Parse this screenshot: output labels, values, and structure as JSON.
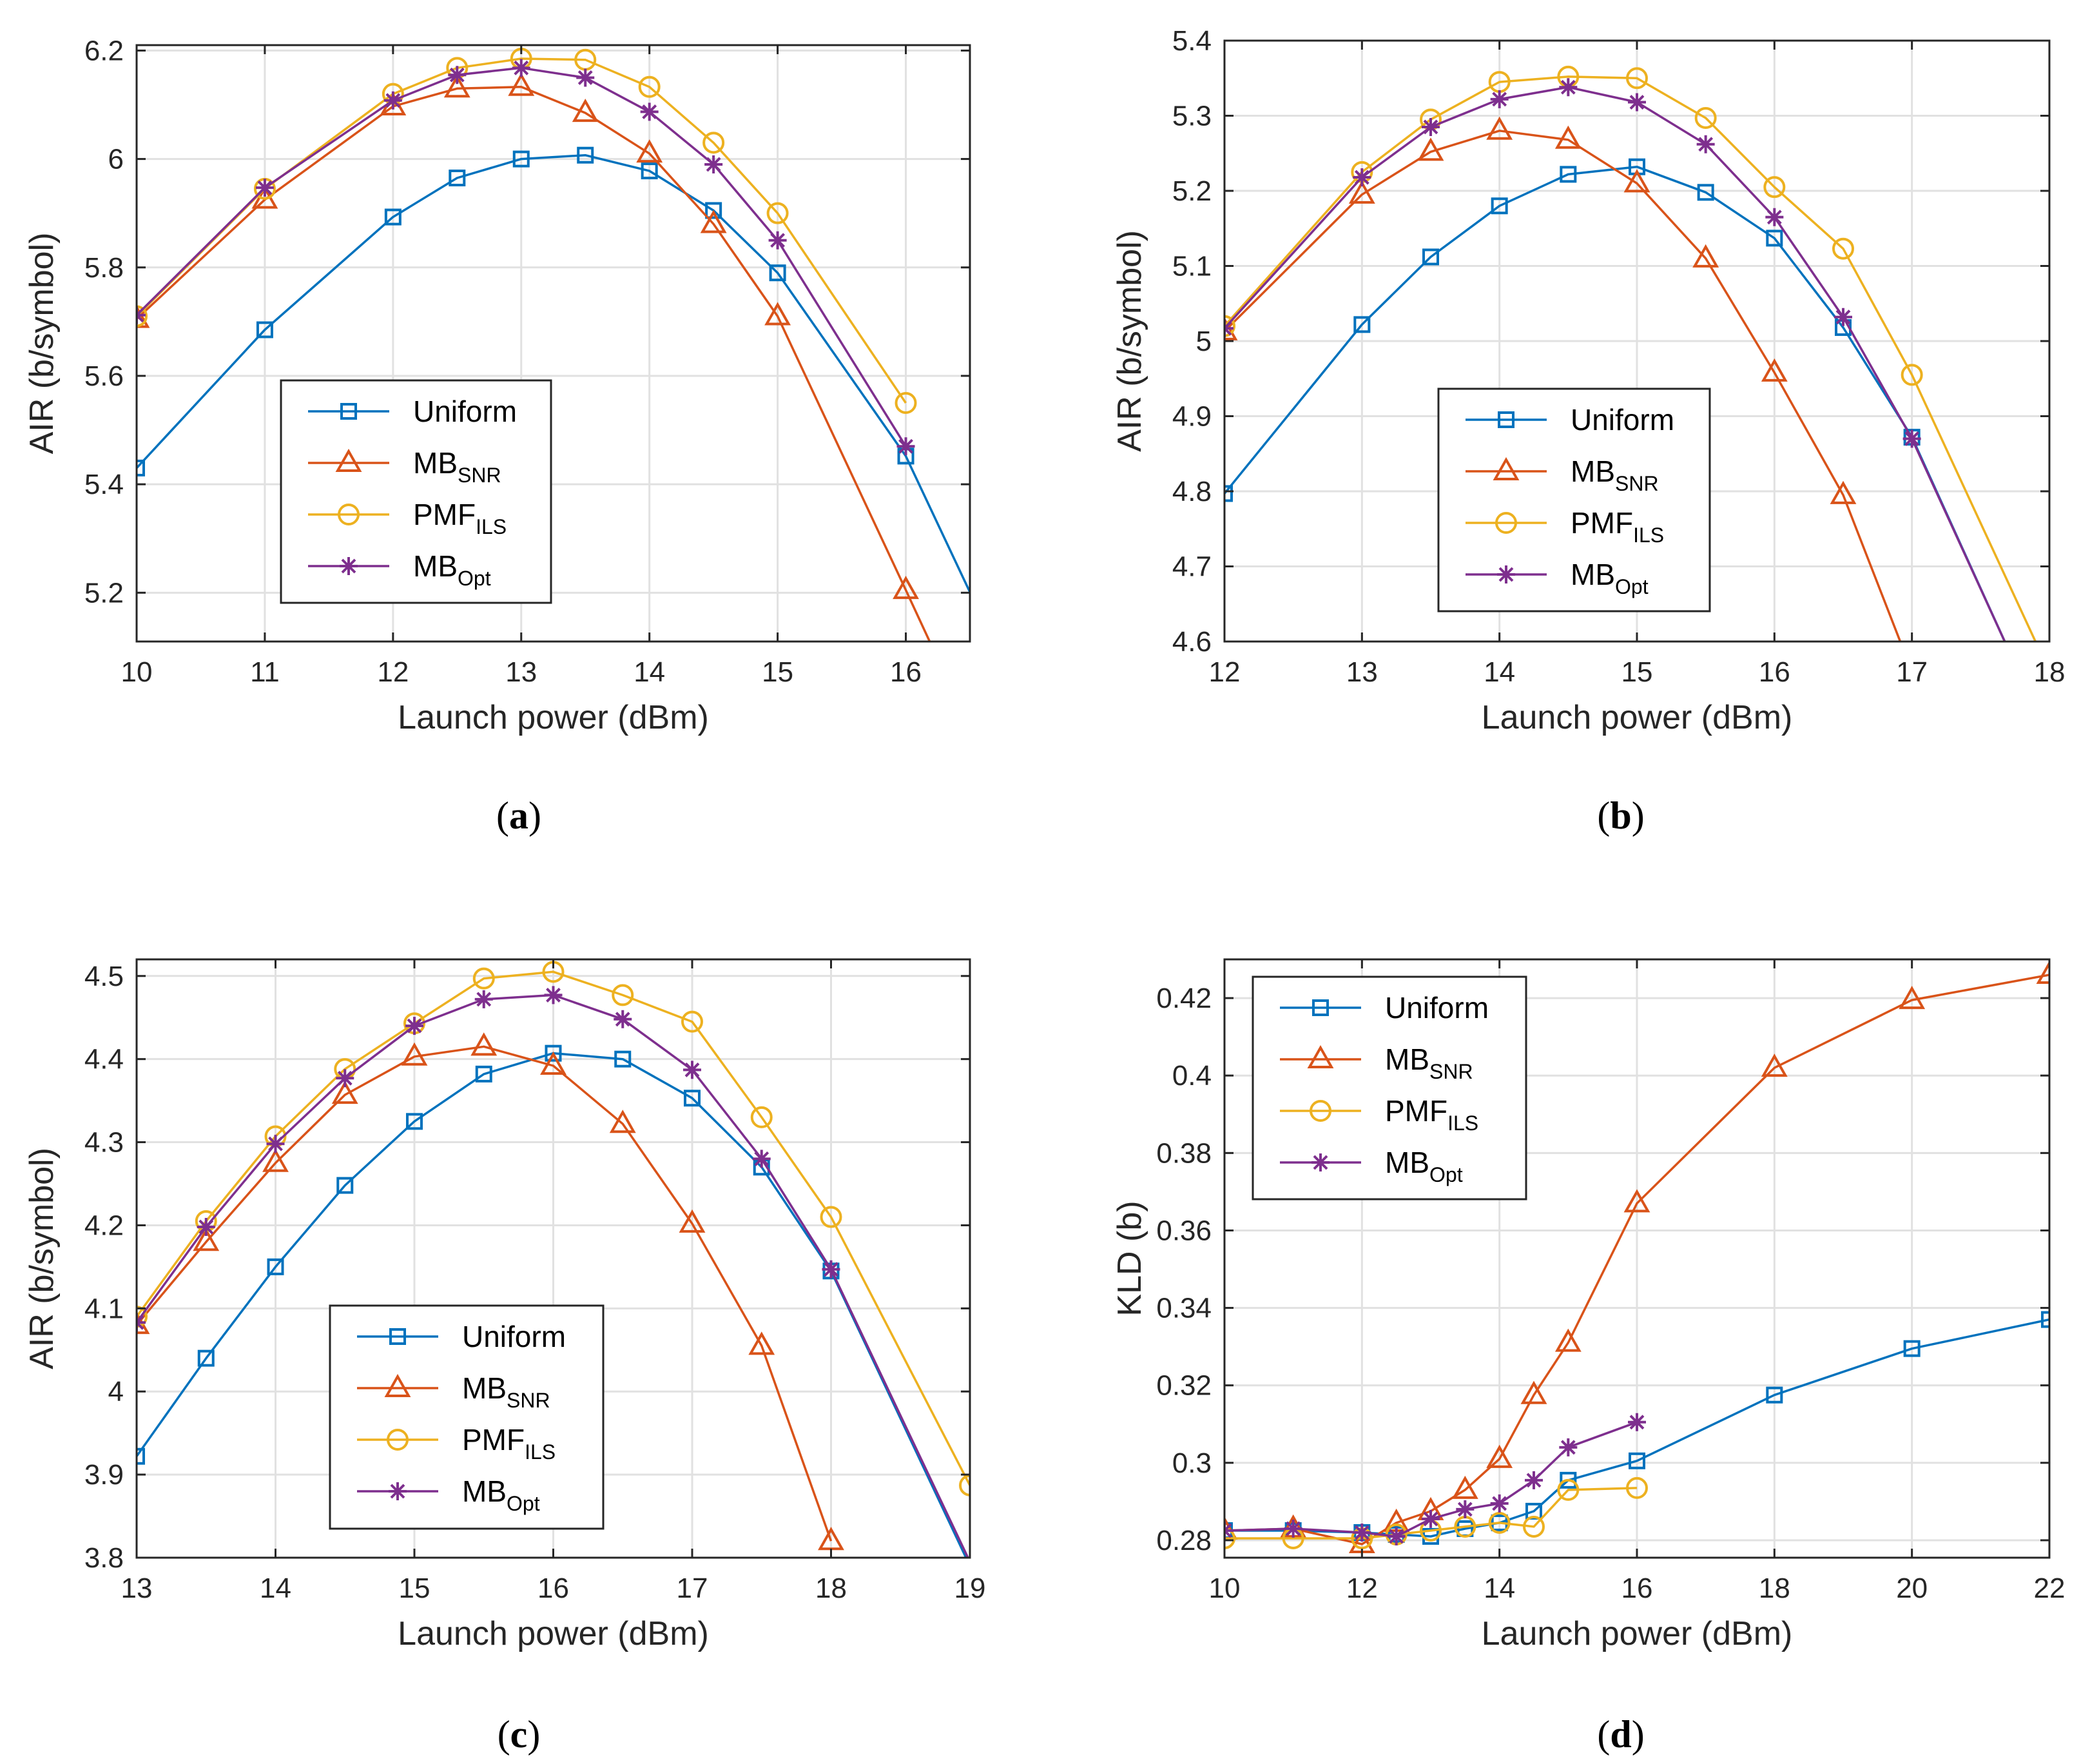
{
  "figure": {
    "colors": {
      "Uniform": "#0072BD",
      "MB_SNR": "#D95319",
      "PMF_ILS": "#EDB120",
      "MB_Opt": "#7E2F8E",
      "grid": "#e1e1e1",
      "axis": "#262626"
    }
  },
  "chart_data": [
    {
      "panel": "a",
      "caption_letter": "a",
      "type": "line",
      "xlabel": "Launch power (dBm)",
      "ylabel": "AIR (b/symbol)",
      "xlim": [
        10,
        16.5
      ],
      "ylim": [
        5.11,
        6.21
      ],
      "xticks": [
        10,
        11,
        12,
        13,
        14,
        15,
        16
      ],
      "xtick_labels": [
        "10",
        "11",
        "12",
        "13",
        "14",
        "15",
        "16"
      ],
      "yticks": [
        5.2,
        5.4,
        5.6,
        5.8,
        6.0,
        6.2
      ],
      "ytick_labels": [
        "5.2",
        "5.4",
        "5.6",
        "5.8",
        "6",
        "6.2"
      ],
      "grid": true,
      "legend_position": "lower-center",
      "series": [
        {
          "key": "Uniform",
          "name": "Uniform",
          "sub": "",
          "marker": "square",
          "x": [
            10,
            11,
            12,
            12.5,
            13,
            13.5,
            14,
            14.5,
            15,
            16,
            17
          ],
          "y": [
            5.43,
            5.685,
            5.893,
            5.965,
            6.0,
            6.007,
            5.978,
            5.905,
            5.79,
            5.452,
            4.95
          ],
          "marker_x": [
            10,
            11,
            12,
            12.5,
            13,
            13.5,
            14,
            14.5,
            15,
            16
          ]
        },
        {
          "key": "MB_SNR",
          "name": "MB",
          "sub": "SNR",
          "marker": "triangle",
          "x": [
            10,
            11,
            12,
            12.5,
            13,
            13.5,
            14,
            14.5,
            15,
            16,
            16.5
          ],
          "y": [
            5.705,
            5.925,
            6.097,
            6.13,
            6.133,
            6.085,
            6.01,
            5.88,
            5.71,
            5.205,
            4.95
          ],
          "marker_x": [
            10,
            11,
            12,
            12.5,
            13,
            13.5,
            14,
            14.5,
            15,
            16
          ]
        },
        {
          "key": "PMF_ILS",
          "name": "PMF",
          "sub": "ILS",
          "marker": "circle",
          "x": [
            10,
            11,
            12,
            12.5,
            13,
            13.5,
            14,
            14.5,
            15,
            16
          ],
          "y": [
            5.71,
            5.945,
            6.12,
            6.168,
            6.185,
            6.183,
            6.133,
            6.03,
            5.9,
            5.55
          ],
          "marker_x": [
            10,
            11,
            12,
            12.5,
            13,
            13.5,
            14,
            14.5,
            15,
            16
          ]
        },
        {
          "key": "MB_Opt",
          "name": "MB",
          "sub": "Opt",
          "marker": "asterisk",
          "x": [
            10,
            11,
            12,
            12.5,
            13,
            13.5,
            14,
            14.5,
            15,
            16
          ],
          "y": [
            5.712,
            5.947,
            6.108,
            6.155,
            6.168,
            6.15,
            6.087,
            5.99,
            5.85,
            5.47
          ],
          "marker_x": [
            10,
            11,
            12,
            12.5,
            13,
            13.5,
            14,
            14.5,
            15,
            16
          ]
        }
      ]
    },
    {
      "panel": "b",
      "caption_letter": "b",
      "type": "line",
      "xlabel": "Launch power (dBm)",
      "ylabel": "AIR (b/symbol)",
      "xlim": [
        12,
        18
      ],
      "ylim": [
        4.6,
        5.4
      ],
      "xticks": [
        12,
        13,
        14,
        15,
        16,
        17,
        18
      ],
      "xtick_labels": [
        "12",
        "13",
        "14",
        "15",
        "16",
        "17",
        "18"
      ],
      "yticks": [
        4.6,
        4.7,
        4.8,
        4.9,
        5.0,
        5.1,
        5.2,
        5.3,
        5.4
      ],
      "ytick_labels": [
        "4.6",
        "4.7",
        "4.8",
        "4.9",
        "5",
        "5.1",
        "5.2",
        "5.3",
        "5.4"
      ],
      "grid": true,
      "legend_position": "lower-center",
      "series": [
        {
          "key": "Uniform",
          "name": "Uniform",
          "sub": "",
          "marker": "square",
          "x": [
            12,
            13,
            13.5,
            14,
            14.5,
            15,
            15.5,
            16,
            16.5,
            17,
            17.7
          ],
          "y": [
            4.797,
            5.022,
            5.112,
            5.18,
            5.222,
            5.232,
            5.198,
            5.137,
            5.018,
            4.872,
            4.59
          ],
          "marker_x": [
            12,
            13,
            13.5,
            14,
            14.5,
            15,
            15.5,
            16,
            16.5,
            17
          ]
        },
        {
          "key": "MB_SNR",
          "name": "MB",
          "sub": "SNR",
          "marker": "triangle",
          "x": [
            12,
            13,
            13.5,
            14,
            14.5,
            15,
            15.5,
            16,
            16.5,
            17
          ],
          "y": [
            5.013,
            5.195,
            5.252,
            5.28,
            5.268,
            5.21,
            5.11,
            4.958,
            4.795,
            4.56
          ],
          "marker_x": [
            12,
            13,
            13.5,
            14,
            14.5,
            15,
            15.5,
            16,
            16.5
          ]
        },
        {
          "key": "PMF_ILS",
          "name": "PMF",
          "sub": "ILS",
          "marker": "circle",
          "x": [
            12,
            13,
            13.5,
            14,
            14.5,
            15,
            15.5,
            16,
            16.5,
            17,
            18
          ],
          "y": [
            5.02,
            5.225,
            5.295,
            5.345,
            5.352,
            5.35,
            5.297,
            5.205,
            5.123,
            4.955,
            4.56
          ],
          "marker_x": [
            12,
            13,
            13.5,
            14,
            14.5,
            15,
            15.5,
            16,
            16.5,
            17
          ]
        },
        {
          "key": "MB_Opt",
          "name": "MB",
          "sub": "Opt",
          "marker": "asterisk",
          "x": [
            12,
            13,
            13.5,
            14,
            14.5,
            15,
            15.5,
            16,
            16.5,
            17,
            17.7
          ],
          "y": [
            5.017,
            5.218,
            5.285,
            5.322,
            5.338,
            5.318,
            5.262,
            5.165,
            5.032,
            4.87,
            4.59
          ],
          "marker_x": [
            12,
            13,
            13.5,
            14,
            14.5,
            15,
            15.5,
            16,
            16.5,
            17
          ]
        }
      ]
    },
    {
      "panel": "c",
      "caption_letter": "c",
      "type": "line",
      "xlabel": "Launch power (dBm)",
      "ylabel": "AIR (b/symbol)",
      "xlim": [
        13,
        19
      ],
      "ylim": [
        3.8,
        4.52
      ],
      "xticks": [
        13,
        14,
        15,
        16,
        17,
        18,
        19
      ],
      "xtick_labels": [
        "13",
        "14",
        "15",
        "16",
        "17",
        "18",
        "19"
      ],
      "yticks": [
        3.8,
        3.9,
        4.0,
        4.1,
        4.2,
        4.3,
        4.4,
        4.5
      ],
      "ytick_labels": [
        "3.8",
        "3.9",
        "4",
        "4.1",
        "4.2",
        "4.3",
        "4.4",
        "4.5"
      ],
      "grid": true,
      "legend_position": "lower-center",
      "series": [
        {
          "key": "Uniform",
          "name": "Uniform",
          "sub": "",
          "marker": "square",
          "x": [
            13,
            13.5,
            14,
            14.5,
            15,
            15.5,
            16,
            16.5,
            17,
            17.5,
            18,
            19
          ],
          "y": [
            3.922,
            4.04,
            4.15,
            4.248,
            4.325,
            4.382,
            4.407,
            4.4,
            4.353,
            4.27,
            4.145,
            3.79
          ],
          "marker_x": [
            13,
            13.5,
            14,
            14.5,
            15,
            15.5,
            16,
            16.5,
            17,
            17.5,
            18
          ]
        },
        {
          "key": "MB_SNR",
          "name": "MB",
          "sub": "SNR",
          "marker": "triangle",
          "x": [
            13,
            13.5,
            14,
            14.5,
            15,
            15.5,
            16,
            16.5,
            17,
            17.5,
            18
          ],
          "y": [
            4.08,
            4.18,
            4.275,
            4.357,
            4.403,
            4.415,
            4.392,
            4.322,
            4.202,
            4.055,
            3.82
          ],
          "marker_x": [
            13,
            13.5,
            14,
            14.5,
            15,
            15.5,
            16,
            16.5,
            17,
            17.5,
            18
          ]
        },
        {
          "key": "PMF_ILS",
          "name": "PMF",
          "sub": "ILS",
          "marker": "circle",
          "x": [
            13,
            13.5,
            14,
            14.5,
            15,
            15.5,
            16,
            16.5,
            17,
            17.5,
            18,
            19
          ],
          "y": [
            4.09,
            4.205,
            4.307,
            4.388,
            4.443,
            4.497,
            4.505,
            4.477,
            4.445,
            4.33,
            4.21,
            3.887
          ],
          "marker_x": [
            13,
            13.5,
            14,
            14.5,
            15,
            15.5,
            16,
            16.5,
            17,
            17.5,
            18,
            19
          ]
        },
        {
          "key": "MB_Opt",
          "name": "MB",
          "sub": "Opt",
          "marker": "asterisk",
          "x": [
            13,
            13.5,
            14,
            14.5,
            15,
            15.5,
            16,
            16.5,
            17,
            17.5,
            18,
            19
          ],
          "y": [
            4.083,
            4.198,
            4.298,
            4.377,
            4.44,
            4.472,
            4.477,
            4.448,
            4.387,
            4.28,
            4.147,
            3.795
          ],
          "marker_x": [
            13,
            13.5,
            14,
            14.5,
            15,
            15.5,
            16,
            16.5,
            17,
            17.5,
            18
          ]
        }
      ]
    },
    {
      "panel": "d",
      "caption_letter": "d",
      "type": "line",
      "xlabel": "Launch power (dBm)",
      "ylabel": "KLD (b)",
      "xlim": [
        10,
        22
      ],
      "ylim": [
        0.2755,
        0.43
      ],
      "xticks": [
        10,
        12,
        14,
        16,
        18,
        20,
        22
      ],
      "xtick_labels": [
        "10",
        "12",
        "14",
        "16",
        "18",
        "20",
        "22"
      ],
      "yticks": [
        0.28,
        0.3,
        0.32,
        0.34,
        0.36,
        0.38,
        0.4,
        0.42
      ],
      "ytick_labels": [
        "0.28",
        "0.3",
        "0.32",
        "0.34",
        "0.36",
        "0.38",
        "0.4",
        "0.42"
      ],
      "grid": true,
      "legend_position": "upper-left",
      "series": [
        {
          "key": "Uniform",
          "name": "Uniform",
          "sub": "",
          "marker": "square",
          "x": [
            10,
            11,
            12,
            12.5,
            13,
            13.5,
            14,
            14.5,
            15,
            16,
            18,
            20,
            22
          ],
          "y": [
            0.2825,
            0.2825,
            0.282,
            0.2815,
            0.281,
            0.283,
            0.2845,
            0.2875,
            0.2955,
            0.3005,
            0.3175,
            0.3295,
            0.337
          ],
          "marker_x": [
            10,
            11,
            12,
            12.5,
            13,
            13.5,
            14,
            14.5,
            15,
            16,
            18,
            20,
            22
          ]
        },
        {
          "key": "MB_SNR",
          "name": "MB",
          "sub": "SNR",
          "marker": "triangle",
          "x": [
            10,
            11,
            12,
            12.5,
            13,
            13.5,
            14,
            14.5,
            15,
            16,
            18,
            20,
            22
          ],
          "y": [
            0.2825,
            0.283,
            0.279,
            0.2845,
            0.2875,
            0.293,
            0.301,
            0.3175,
            0.331,
            0.367,
            0.402,
            0.4195,
            0.426
          ],
          "marker_x": [
            10,
            11,
            12,
            12.5,
            13,
            13.5,
            14,
            14.5,
            15,
            16,
            18,
            20,
            22
          ]
        },
        {
          "key": "PMF_ILS",
          "name": "PMF",
          "sub": "ILS",
          "marker": "circle",
          "x": [
            10,
            11,
            12,
            12.5,
            13,
            13.5,
            14,
            14.5,
            15,
            16
          ],
          "y": [
            0.2805,
            0.2805,
            0.2805,
            0.2815,
            0.2825,
            0.2835,
            0.2845,
            0.2835,
            0.293,
            0.2935
          ],
          "marker_x": [
            10,
            11,
            12,
            12.5,
            13,
            13.5,
            14,
            14.5,
            15,
            16
          ]
        },
        {
          "key": "MB_Opt",
          "name": "MB",
          "sub": "Opt",
          "marker": "asterisk",
          "x": [
            10,
            11,
            12,
            12.5,
            13,
            13.5,
            14,
            14.5,
            15,
            16
          ],
          "y": [
            0.2825,
            0.283,
            0.282,
            0.281,
            0.2855,
            0.288,
            0.2895,
            0.2955,
            0.304,
            0.3105
          ],
          "marker_x": [
            10,
            11,
            12,
            12.5,
            13,
            13.5,
            14,
            14.5,
            15,
            16
          ]
        }
      ]
    }
  ]
}
